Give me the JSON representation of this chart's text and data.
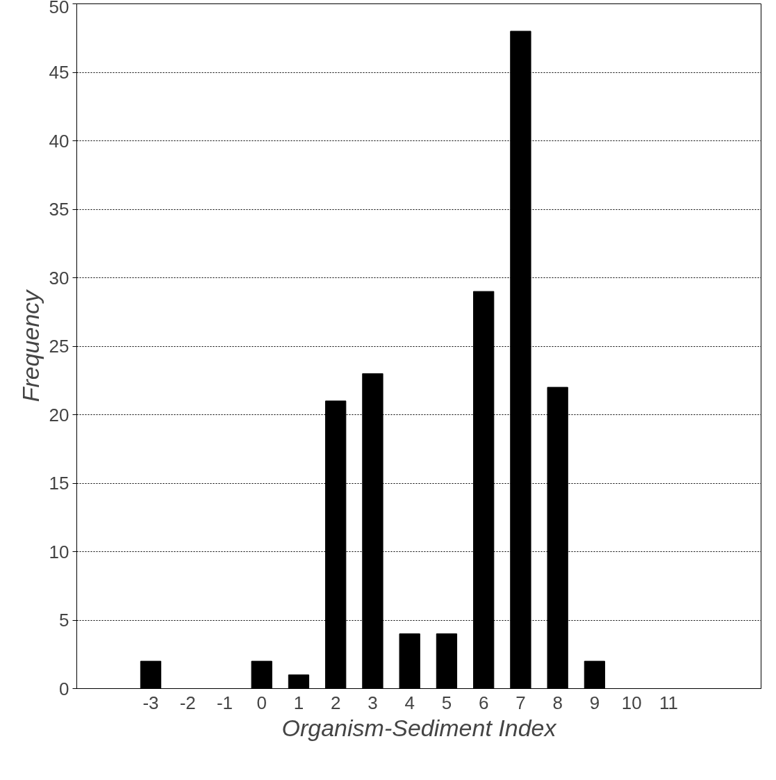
{
  "chart_data": {
    "type": "bar",
    "xlabel": "Organism-Sediment Index",
    "ylabel": "Frequency",
    "categories": [
      "-3",
      "-2",
      "-1",
      "0",
      "1",
      "2",
      "3",
      "4",
      "5",
      "6",
      "7",
      "8",
      "9",
      "10",
      "11"
    ],
    "values": [
      2,
      0,
      0,
      2,
      1,
      21,
      23,
      4,
      4,
      29,
      48,
      22,
      2,
      0,
      0
    ],
    "color": "#000000",
    "ylim": [
      0,
      50
    ],
    "yticks": [
      0,
      5,
      10,
      15,
      20,
      25,
      30,
      35,
      40,
      45,
      50
    ],
    "grid": "y"
  }
}
